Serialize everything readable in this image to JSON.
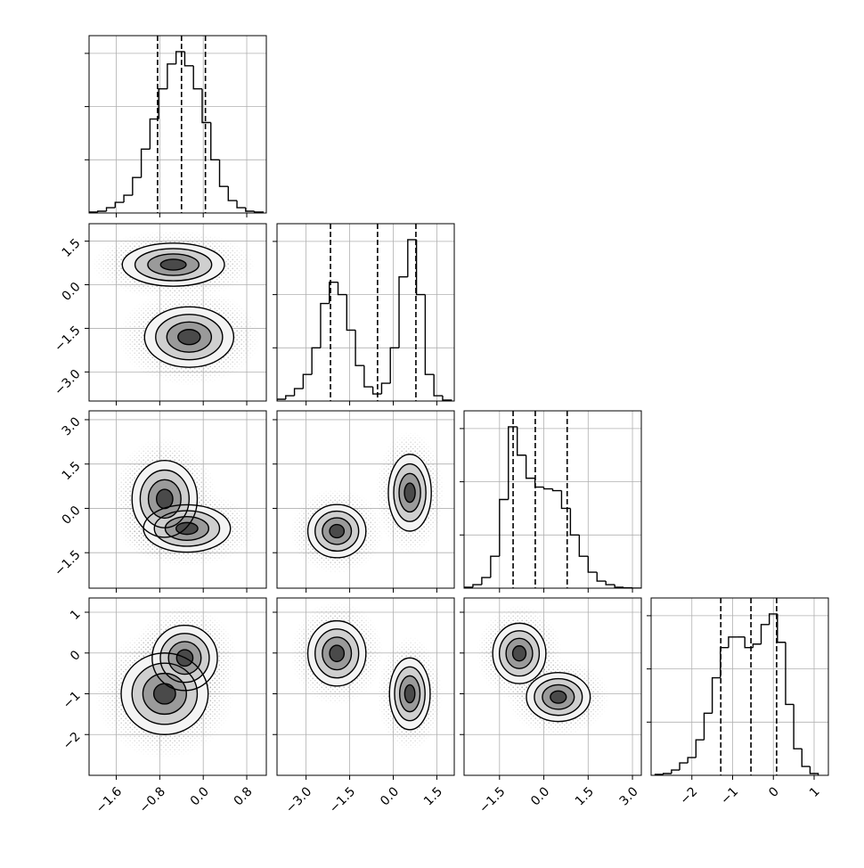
{
  "chart_data": {
    "type": "corner",
    "grid": true,
    "line_color": "#000000",
    "grid_color": "#b0b0b0",
    "point_color": "#9a9a9a",
    "levels": [
      0.5,
      1,
      1.5,
      2
    ],
    "fill_colors": [
      "#f4f4f4",
      "#cfcfcf",
      "#9a9a9a",
      "#4a4a4a"
    ],
    "hist_ylim": [
      0,
      1
    ],
    "hist_yticks": [
      0.3,
      0.6,
      0.9
    ],
    "params": [
      {
        "lim": [
          -2.1,
          1.16
        ],
        "ticks": [
          {
            "value": -1.6,
            "label": "−1.6"
          },
          {
            "value": -0.8,
            "label": "−0.8"
          },
          {
            "value": 0.0,
            "label": "0.0"
          },
          0.8
        ],
        "bins": [
          -2.1,
          -1.94,
          -1.78,
          -1.62,
          -1.46,
          -1.3,
          -1.14,
          -0.98,
          -0.82,
          -0.66,
          -0.5,
          -0.34,
          -0.18,
          -0.02,
          0.14,
          0.3,
          0.46,
          0.62,
          0.78,
          0.94,
          1.1
        ],
        "counts": [
          0.005,
          0.01,
          0.03,
          0.06,
          0.1,
          0.2,
          0.36,
          0.53,
          0.7,
          0.84,
          0.91,
          0.83,
          0.7,
          0.51,
          0.3,
          0.15,
          0.07,
          0.03,
          0.01,
          0.005
        ],
        "quantiles": [
          -0.84,
          -0.4,
          0.04
        ]
      },
      {
        "lim": [
          -4.0,
          2.1
        ],
        "ticks": [
          {
            "value": -3.0,
            "label": "−3.0"
          },
          {
            "value": -1.5,
            "label": "−1.5"
          },
          {
            "value": 0.0,
            "label": "0.0"
          },
          1.5
        ],
        "bins": [
          -4.0,
          -3.7,
          -3.4,
          -3.1,
          -2.8,
          -2.5,
          -2.2,
          -1.9,
          -1.6,
          -1.3,
          -1.0,
          -0.7,
          -0.4,
          -0.1,
          0.2,
          0.5,
          0.8,
          1.1,
          1.4,
          1.7,
          2.0
        ],
        "counts": [
          0.01,
          0.03,
          0.07,
          0.15,
          0.3,
          0.55,
          0.67,
          0.6,
          0.4,
          0.2,
          0.08,
          0.04,
          0.1,
          0.3,
          0.7,
          0.91,
          0.6,
          0.15,
          0.03,
          0.005
        ],
        "quantiles": [
          -2.16,
          -0.54,
          0.78
        ]
      },
      {
        "lim": [
          -2.7,
          3.3
        ],
        "ticks": [
          {
            "value": -1.5,
            "label": "−1.5"
          },
          {
            "value": 0.0,
            "label": "0.0"
          },
          1.5,
          {
            "value": 3.0,
            "label": "3.0"
          }
        ],
        "bins": [
          -2.7,
          -2.4,
          -2.1,
          -1.8,
          -1.5,
          -1.2,
          -0.9,
          -0.6,
          -0.3,
          0.0,
          0.3,
          0.6,
          0.9,
          1.2,
          1.5,
          1.8,
          2.1,
          2.4,
          2.7,
          3.0,
          3.3
        ],
        "counts": [
          0.005,
          0.02,
          0.06,
          0.18,
          0.5,
          0.91,
          0.75,
          0.62,
          0.57,
          0.56,
          0.55,
          0.45,
          0.3,
          0.18,
          0.09,
          0.04,
          0.02,
          0.005,
          0.002,
          0
        ],
        "quantiles": [
          -1.04,
          -0.29,
          0.79
        ]
      },
      {
        "lim": [
          -3.0,
          1.35
        ],
        "ticks": [
          {
            "value": -2,
            "label": "−2"
          },
          {
            "value": -1,
            "label": "−1"
          },
          0,
          1
        ],
        "bins": [
          -2.9,
          -2.7,
          -2.5,
          -2.3,
          -2.1,
          -1.9,
          -1.7,
          -1.5,
          -1.3,
          -1.1,
          -0.9,
          -0.7,
          -0.5,
          -0.3,
          -0.1,
          0.1,
          0.3,
          0.5,
          0.7,
          0.9,
          1.1
        ],
        "counts": [
          0.005,
          0.01,
          0.03,
          0.07,
          0.1,
          0.2,
          0.35,
          0.55,
          0.72,
          0.78,
          0.78,
          0.72,
          0.74,
          0.85,
          0.91,
          0.75,
          0.4,
          0.15,
          0.05,
          0.01
        ],
        "quantiles": [
          -1.29,
          -0.55,
          0.08
        ]
      }
    ],
    "pairs": [
      {
        "x": 0,
        "y": 1,
        "blobs": [
          {
            "cx": -0.55,
            "cy": 0.69,
            "sx": 0.47,
            "sy": 0.37
          },
          {
            "cx": -0.26,
            "cy": -1.8,
            "sx": 0.41,
            "sy": 0.52
          }
        ]
      },
      {
        "x": 0,
        "y": 2,
        "blobs": [
          {
            "cx": -0.71,
            "cy": 0.32,
            "sx": 0.3,
            "sy": 0.65
          },
          {
            "cx": -0.3,
            "cy": -0.68,
            "sx": 0.4,
            "sy": 0.4
          }
        ]
      },
      {
        "x": 1,
        "y": 2,
        "blobs": [
          {
            "cx": -1.94,
            "cy": -0.77,
            "sx": 0.5,
            "sy": 0.45
          },
          {
            "cx": 0.57,
            "cy": 0.53,
            "sx": 0.37,
            "sy": 0.65
          }
        ]
      },
      {
        "x": 0,
        "y": 3,
        "blobs": [
          {
            "cx": -0.34,
            "cy": -0.12,
            "sx": 0.3,
            "sy": 0.4
          },
          {
            "cx": -0.71,
            "cy": -1.0,
            "sx": 0.4,
            "sy": 0.5
          }
        ]
      },
      {
        "x": 1,
        "y": 3,
        "blobs": [
          {
            "cx": -1.94,
            "cy": -0.01,
            "sx": 0.5,
            "sy": 0.4
          },
          {
            "cx": 0.57,
            "cy": -1.0,
            "sx": 0.35,
            "sy": 0.44
          }
        ]
      },
      {
        "x": 2,
        "y": 3,
        "blobs": [
          {
            "cx": -0.83,
            "cy": -0.01,
            "sx": 0.45,
            "sy": 0.37
          },
          {
            "cx": 0.49,
            "cy": -1.08,
            "sx": 0.54,
            "sy": 0.3
          }
        ]
      }
    ]
  }
}
